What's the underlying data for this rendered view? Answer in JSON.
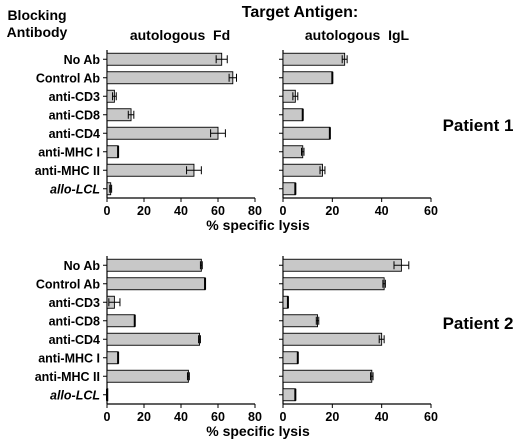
{
  "title": "Target Antigen:",
  "blocking_header": [
    "Blocking",
    "Antibody"
  ],
  "column_titles": [
    "autologous  Fd",
    "autologous  IgL"
  ],
  "patient_labels": [
    "Patient 1",
    "Patient 2"
  ],
  "xlabel": "% specific lysis",
  "colors": {
    "bar_fill": "#c8c8c8",
    "bar_stroke": "#000000",
    "axis": "#000000"
  },
  "chart_data": [
    {
      "type": "bar",
      "orientation": "horizontal",
      "panel": "Patient 1 - autologous Fd",
      "categories": [
        "No  Ab",
        "Control  Ab",
        "anti-CD3",
        "anti-CD8",
        "anti-CD4",
        "anti-MHC   I",
        "anti-MHC   II",
        "allo-LCL"
      ],
      "values": [
        62,
        68,
        4,
        13,
        60,
        6,
        47,
        2
      ],
      "errors": [
        3,
        2,
        1,
        1.5,
        4,
        0,
        4,
        0.5
      ],
      "xlabel": "% specific lysis",
      "xlim": [
        0,
        80
      ],
      "xticks": [
        0,
        20,
        40,
        60,
        80
      ]
    },
    {
      "type": "bar",
      "orientation": "horizontal",
      "panel": "Patient 1 - autologous IgL",
      "categories": [
        "No  Ab",
        "Control  Ab",
        "anti-CD3",
        "anti-CD8",
        "anti-CD4",
        "anti-MHC   I",
        "anti-MHC   II",
        "allo-LCL"
      ],
      "values": [
        25,
        20,
        5,
        8,
        19,
        8,
        16,
        5
      ],
      "errors": [
        1,
        0,
        1,
        0,
        0,
        0.5,
        1,
        0
      ],
      "xlabel": "",
      "xlim": [
        0,
        60
      ],
      "xticks": [
        0,
        20,
        40,
        60
      ]
    },
    {
      "type": "bar",
      "orientation": "horizontal",
      "panel": "Patient 2 - autologous Fd",
      "categories": [
        "No  Ab",
        "Control  Ab",
        "anti-CD3",
        "anti-CD8",
        "anti-CD4",
        "anti-MHC   I",
        "anti-MHC   II",
        "allo-LCL"
      ],
      "values": [
        51,
        53,
        4,
        15,
        50,
        6,
        44,
        0
      ],
      "errors": [
        0.5,
        0,
        3,
        0,
        0.5,
        0,
        0.5,
        0
      ],
      "xlabel": "% specific lysis",
      "xlim": [
        0,
        80
      ],
      "xticks": [
        0,
        20,
        40,
        60,
        80
      ]
    },
    {
      "type": "bar",
      "orientation": "horizontal",
      "panel": "Patient 2 - autologous IgL",
      "categories": [
        "No  Ab",
        "Control  Ab",
        "anti-CD3",
        "anti-CD8",
        "anti-CD4",
        "anti-MHC   I",
        "anti-MHC   II",
        "allo-LCL"
      ],
      "values": [
        48,
        41,
        2,
        14,
        40,
        6,
        36,
        5
      ],
      "errors": [
        3,
        0.5,
        0,
        0.5,
        1,
        0,
        0.5,
        0
      ],
      "xlabel": "",
      "xlim": [
        0,
        60
      ],
      "xticks": [
        0,
        20,
        40,
        60
      ]
    }
  ]
}
